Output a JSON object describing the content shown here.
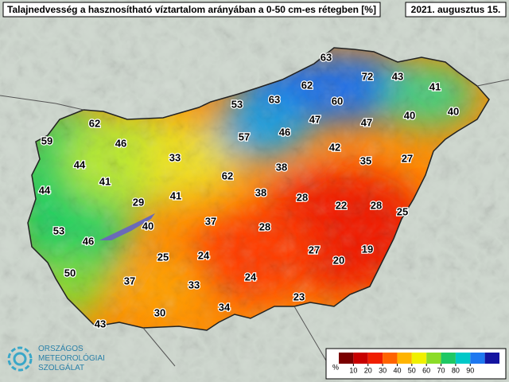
{
  "title": "Talajnedvesség a hasznosítható víztartalom arányában a 0-50 cm-es rétegben [%]",
  "date": "2021. augusztus 15.",
  "readings": [
    63,
    72,
    43,
    41,
    62,
    53,
    63,
    60,
    40,
    40,
    62,
    46,
    57,
    46,
    47,
    47,
    59,
    42,
    35,
    27,
    33,
    44,
    41,
    62,
    38,
    44,
    29,
    41,
    38,
    28,
    22,
    28,
    25,
    40,
    37,
    28,
    53,
    46,
    27,
    19,
    20,
    25,
    24,
    50,
    37,
    33,
    24,
    23,
    34,
    30,
    43
  ],
  "legend": {
    "unit": "%",
    "ticks": [
      10,
      20,
      30,
      40,
      50,
      60,
      70,
      80,
      90
    ],
    "colors": [
      "#7a0000",
      "#c80000",
      "#f01e00",
      "#ff6400",
      "#ffb400",
      "#f0f000",
      "#8cdc28",
      "#1ec864",
      "#00c8c8",
      "#1e78f0",
      "#1414a0"
    ]
  },
  "logo": [
    "ORSZÁGOS",
    "METEOROLÓGIAI",
    "SZOLGÁLAT"
  ]
}
